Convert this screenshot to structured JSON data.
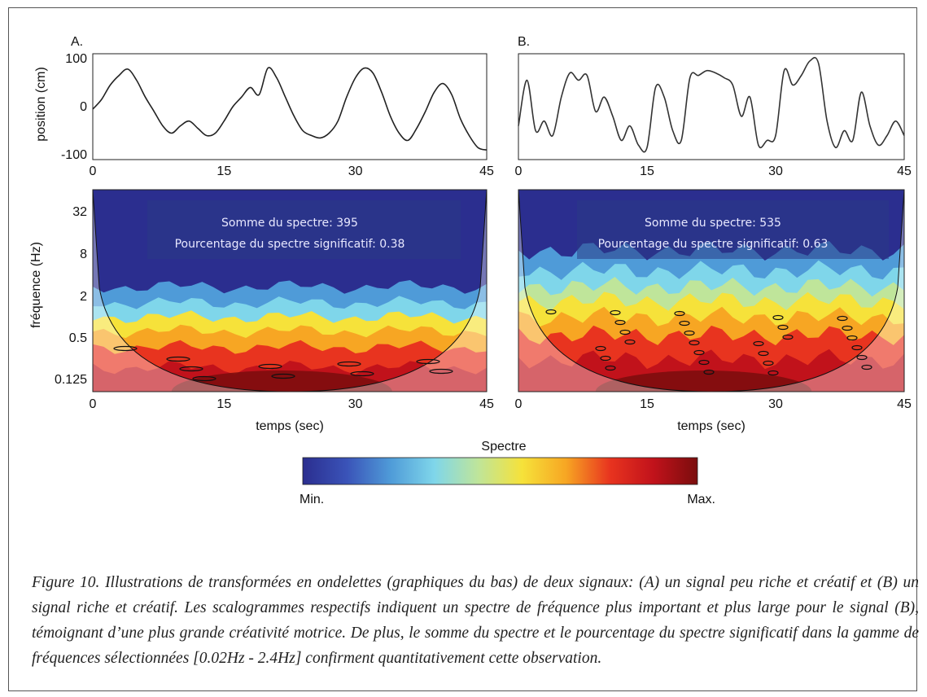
{
  "panels": [
    {
      "label": "A.",
      "annotation_line1": "Somme du spectre: 395",
      "annotation_line2": "Pourcentage du spectre significatif: 0.38"
    },
    {
      "label": "B.",
      "annotation_line1": "Somme du spectre: 535",
      "annotation_line2": "Pourcentage du spectre significatif: 0.63"
    }
  ],
  "colorbar": {
    "title": "Spectre",
    "min_label": "Min.",
    "max_label": "Max.",
    "colors": [
      "#2b2e8f",
      "#3a53b8",
      "#4f9bd8",
      "#7fd6ea",
      "#bfe59a",
      "#f6e23a",
      "#f7a623",
      "#e8341f",
      "#c1121b",
      "#7a0d0d"
    ]
  },
  "caption": "Figure 10. Illustrations de transformées en ondelettes (graphiques du bas) de deux signaux: (A) un signal peu riche et créatif et (B) un signal riche et créatif. Les scalogrammes respectifs indiquent un spectre de fréquence plus important et plus large pour le signal (B), témoignant d’une plus grande créativité motrice. De plus, le somme du spectre et le pourcentage du spectre significatif dans la gamme de fréquences sélectionnées [0.02Hz - 2.4Hz] confirment quantitativement cette observation.",
  "chart_data": [
    {
      "type": "line",
      "panel": "A",
      "xlabel": "",
      "ylabel": "position (cm)",
      "xlim": [
        0,
        45
      ],
      "ylim": [
        -110,
        110
      ],
      "xticks": [
        0,
        15,
        30,
        45
      ],
      "yticks": [
        100,
        0,
        -100
      ],
      "x": [
        0,
        1,
        2,
        3,
        4,
        5,
        6,
        7,
        8,
        9,
        10,
        11,
        12,
        13,
        14,
        15,
        16,
        17,
        18,
        19,
        20,
        21,
        22,
        23,
        24,
        25,
        26,
        27,
        28,
        29,
        30,
        31,
        32,
        33,
        34,
        35,
        36,
        37,
        38,
        39,
        40,
        41,
        42,
        43,
        44,
        45
      ],
      "y": [
        -5,
        15,
        45,
        65,
        78,
        55,
        20,
        -10,
        -40,
        -55,
        -40,
        -30,
        -45,
        -60,
        -55,
        -30,
        0,
        20,
        40,
        25,
        80,
        60,
        20,
        -20,
        -50,
        -60,
        -65,
        -55,
        -30,
        20,
        60,
        80,
        70,
        30,
        -20,
        -55,
        -70,
        -45,
        -10,
        30,
        48,
        25,
        -25,
        -60,
        -85,
        -90
      ]
    },
    {
      "type": "line",
      "panel": "B",
      "xlabel": "",
      "ylabel": "",
      "xlim": [
        0,
        45
      ],
      "ylim": [
        -110,
        110
      ],
      "xticks": [
        0,
        15,
        30,
        45
      ],
      "yticks": [],
      "x": [
        0,
        1,
        2,
        3,
        4,
        5,
        6,
        7,
        8,
        9,
        10,
        11,
        12,
        13,
        14,
        15,
        16,
        17,
        18,
        19,
        20,
        21,
        22,
        23,
        24,
        25,
        26,
        27,
        28,
        29,
        30,
        31,
        32,
        33,
        34,
        35,
        36,
        37,
        38,
        39,
        40,
        41,
        42,
        43,
        44,
        45
      ],
      "y": [
        -40,
        55,
        -50,
        -30,
        -60,
        20,
        70,
        55,
        65,
        -10,
        20,
        -20,
        -70,
        -40,
        -80,
        -85,
        40,
        20,
        -50,
        -70,
        60,
        65,
        75,
        70,
        60,
        45,
        -20,
        20,
        -80,
        -70,
        -60,
        75,
        45,
        65,
        95,
        90,
        -30,
        -85,
        -50,
        -70,
        30,
        -40,
        -80,
        -60,
        -30,
        -60
      ]
    },
    {
      "type": "heatmap",
      "panel": "A",
      "xlabel": "temps (sec)",
      "ylabel": "fréquence (Hz)",
      "xlim": [
        0,
        45
      ],
      "xticks": [
        0,
        15,
        30,
        45
      ],
      "yticks": [
        "32",
        "8",
        "2",
        "0.5",
        "0.125"
      ],
      "note": "scalogram"
    },
    {
      "type": "heatmap",
      "panel": "B",
      "xlabel": "temps (sec)",
      "ylabel": "",
      "xlim": [
        0,
        45
      ],
      "xticks": [
        0,
        15,
        30,
        45
      ],
      "yticks": [],
      "note": "scalogram"
    }
  ]
}
